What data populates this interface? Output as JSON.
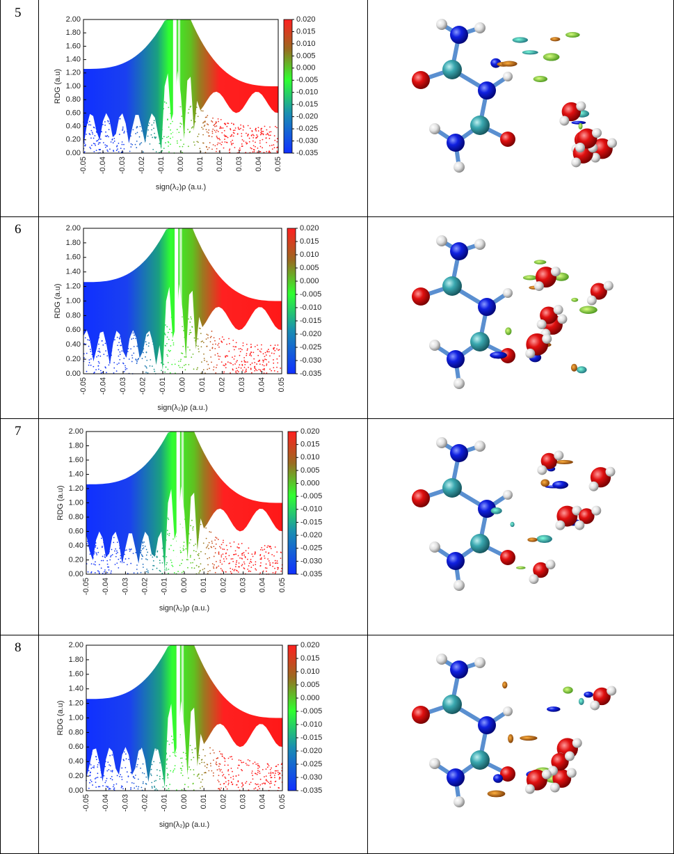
{
  "table": {
    "rows": [
      {
        "label": "5",
        "plot": {
          "type": "scatter",
          "ylabel": "RDG (a.u)",
          "xlabel": "sign(λ₂)ρ (a.u.)",
          "xlim": [
            -0.05,
            0.05
          ],
          "ylim": [
            0,
            2
          ],
          "xticks": [
            -0.05,
            -0.04,
            -0.03,
            -0.02,
            -0.01,
            {
              "value": 0,
              "label": "0.00"
            },
            0.01,
            0.02,
            0.03,
            0.04,
            0.05
          ],
          "yticks": [
            {
              "value": 0,
              "label": "0.00"
            },
            {
              "value": 0.2,
              "label": "0.20"
            },
            {
              "value": 0.4,
              "label": "0.40"
            },
            {
              "value": 0.6,
              "label": "0.60"
            },
            {
              "value": 0.8,
              "label": "0.80"
            },
            {
              "value": 1,
              "label": "1.00"
            },
            {
              "value": 1.2,
              "label": "1.20"
            },
            {
              "value": 1.4,
              "label": "1.40"
            },
            {
              "value": 1.6,
              "label": "1.60"
            },
            {
              "value": 1.8,
              "label": "1.80"
            },
            {
              "value": 2,
              "label": "2.00"
            }
          ],
          "colorbar": {
            "lim": [
              -0.035,
              0.02
            ],
            "ticks": [
              {
                "value": 0.02,
                "label": "0.020"
              },
              0.015,
              {
                "value": 0.01,
                "label": "0.010"
              },
              0.005,
              {
                "value": 0,
                "label": "0.000"
              },
              -0.005,
              {
                "value": -0.01,
                "label": "-0.010"
              },
              -0.015,
              {
                "value": -0.02,
                "label": "-0.020"
              },
              -0.025,
              {
                "value": -0.03,
                "label": "-0.030"
              },
              -0.035
            ]
          }
        }
      },
      {
        "label": "6",
        "plot": {
          "type": "scatter",
          "ylabel": "RDG (a.u)",
          "xlabel": "sign(λ₂)ρ (a.u.)",
          "xlim": [
            -0.05,
            0.05
          ],
          "ylim": [
            0,
            2
          ],
          "xticks": [
            -0.05,
            -0.04,
            -0.03,
            -0.02,
            -0.01,
            {
              "value": 0,
              "label": "0.00"
            },
            0.01,
            0.02,
            0.03,
            0.04,
            0.05
          ],
          "yticks": [
            {
              "value": 0,
              "label": "0.00"
            },
            {
              "value": 0.2,
              "label": "0.20"
            },
            {
              "value": 0.4,
              "label": "0.40"
            },
            {
              "value": 0.6,
              "label": "0.60"
            },
            {
              "value": 0.8,
              "label": "0.80"
            },
            {
              "value": 1,
              "label": "1.00"
            },
            {
              "value": 1.2,
              "label": "1.20"
            },
            {
              "value": 1.4,
              "label": "1.40"
            },
            {
              "value": 1.6,
              "label": "1.60"
            },
            {
              "value": 1.8,
              "label": "1.80"
            },
            {
              "value": 2,
              "label": "2.00"
            }
          ],
          "colorbar": {
            "lim": [
              -0.035,
              0.02
            ],
            "ticks": [
              {
                "value": 0.02,
                "label": "0.020"
              },
              0.015,
              {
                "value": 0.01,
                "label": "0.010"
              },
              0.005,
              {
                "value": 0,
                "label": "0.000"
              },
              -0.005,
              {
                "value": -0.01,
                "label": "-0.010"
              },
              -0.015,
              {
                "value": -0.02,
                "label": "-0.020"
              },
              -0.025,
              {
                "value": -0.03,
                "label": "-0.030"
              },
              -0.035
            ]
          }
        }
      },
      {
        "label": "7",
        "plot": {
          "type": "scatter",
          "ylabel": "RDG (a.u)",
          "xlabel": "sign(λ₂)ρ (a.u.)",
          "xlim": [
            -0.05,
            0.05
          ],
          "ylim": [
            0,
            2
          ],
          "xticks": [
            -0.05,
            -0.04,
            -0.03,
            -0.02,
            -0.01,
            {
              "value": 0,
              "label": "0.00"
            },
            0.01,
            0.02,
            0.03,
            0.04,
            0.05
          ],
          "yticks": [
            {
              "value": 0,
              "label": "0.00"
            },
            {
              "value": 0.2,
              "label": "0.20"
            },
            {
              "value": 0.4,
              "label": "0.40"
            },
            {
              "value": 0.6,
              "label": "0.60"
            },
            {
              "value": 0.8,
              "label": "0.80"
            },
            {
              "value": 1,
              "label": "1.00"
            },
            {
              "value": 1.2,
              "label": "1.20"
            },
            {
              "value": 1.4,
              "label": "1.40"
            },
            {
              "value": 1.6,
              "label": "1.60"
            },
            {
              "value": 1.8,
              "label": "1.80"
            },
            {
              "value": 2,
              "label": "2.00"
            }
          ],
          "colorbar": {
            "lim": [
              -0.035,
              0.02
            ],
            "ticks": [
              {
                "value": 0.02,
                "label": "0.020"
              },
              0.015,
              {
                "value": 0.01,
                "label": "0.010"
              },
              0.005,
              {
                "value": 0,
                "label": "0.000"
              },
              -0.005,
              {
                "value": -0.01,
                "label": "-0.010"
              },
              -0.015,
              {
                "value": -0.02,
                "label": "-0.020"
              },
              -0.025,
              {
                "value": -0.03,
                "label": "-0.030"
              },
              -0.035
            ]
          }
        }
      },
      {
        "label": "8",
        "plot": {
          "type": "scatter",
          "ylabel": "RDG (a.u)",
          "xlabel": "sign(λ₂)ρ (a.u.)",
          "xlim": [
            -0.05,
            0.05
          ],
          "ylim": [
            0,
            2
          ],
          "xticks": [
            -0.05,
            -0.04,
            -0.03,
            -0.02,
            -0.01,
            {
              "value": 0,
              "label": "0.00"
            },
            0.01,
            0.02,
            0.03,
            0.04,
            0.05
          ],
          "yticks": [
            {
              "value": 0,
              "label": "0.00"
            },
            {
              "value": 0.2,
              "label": "0.20"
            },
            {
              "value": 0.4,
              "label": "0.40"
            },
            {
              "value": 0.6,
              "label": "0.60"
            },
            {
              "value": 0.8,
              "label": "0.80"
            },
            {
              "value": 1,
              "label": "1.00"
            },
            {
              "value": 1.2,
              "label": "1.20"
            },
            {
              "value": 1.4,
              "label": "1.40"
            },
            {
              "value": 1.6,
              "label": "1.60"
            },
            {
              "value": 1.8,
              "label": "1.80"
            },
            {
              "value": 2,
              "label": "2.00"
            }
          ],
          "colorbar": {
            "lim": [
              -0.035,
              0.02
            ],
            "ticks": [
              {
                "value": 0.02,
                "label": "0.020"
              },
              0.015,
              {
                "value": 0.01,
                "label": "0.010"
              },
              0.005,
              {
                "value": 0,
                "label": "0.000"
              },
              -0.005,
              {
                "value": -0.01,
                "label": "-0.010"
              },
              -0.015,
              {
                "value": -0.02,
                "label": "-0.020"
              },
              -0.025,
              {
                "value": -0.03,
                "label": "-0.030"
              },
              -0.035
            ]
          }
        }
      }
    ]
  }
}
